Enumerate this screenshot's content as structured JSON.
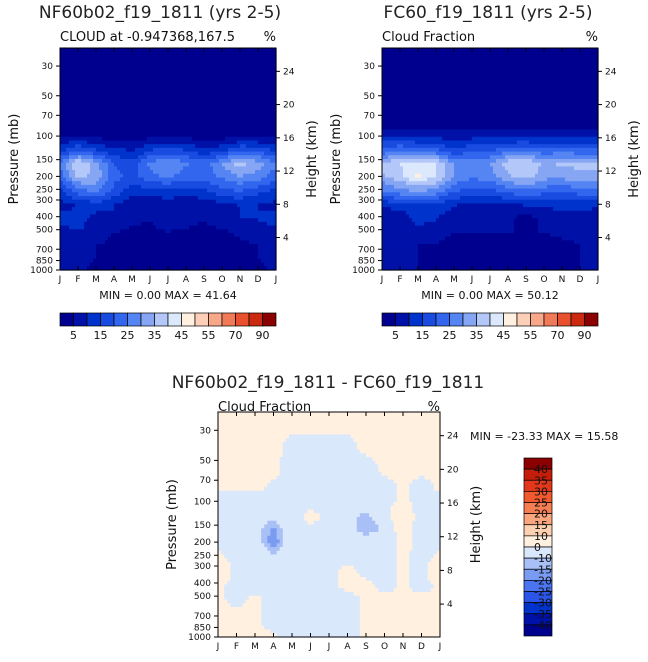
{
  "chart_data": [
    {
      "type": "heatmap",
      "title": "NF60b02_f19_1811 (yrs 2-5)",
      "subtitle": "CLOUD at -0.947368,167.5",
      "units": "%",
      "ylabel": "Pressure (mb)",
      "y2label": "Height (km)",
      "x_ticks": [
        "J",
        "F",
        "M",
        "A",
        "M",
        "J",
        "J",
        "A",
        "S",
        "O",
        "N",
        "D",
        "J"
      ],
      "pressure_ticks": [
        30,
        50,
        70,
        100,
        150,
        200,
        250,
        300,
        400,
        500,
        700,
        850,
        1000
      ],
      "height_ticks": [
        24,
        20,
        16,
        12,
        8,
        4
      ],
      "ylim": [
        1000,
        22
      ],
      "min_label": "MIN =",
      "min_value": "0.00",
      "max_label": "MAX =",
      "max_value": "41.64",
      "colorbar_labels": [
        "5",
        "15",
        "25",
        "35",
        "45",
        "55",
        "70",
        "90"
      ],
      "levels": [
        0,
        5,
        10,
        15,
        20,
        25,
        30,
        35,
        40,
        45,
        50,
        55,
        60,
        70,
        80,
        90
      ],
      "palette": [
        "#00008f",
        "#0011a8",
        "#0033cc",
        "#1a4be0",
        "#3366ee",
        "#5585f2",
        "#86a6f4",
        "#b3c8f8",
        "#dce8fc",
        "#fff0e0",
        "#fcd0b8",
        "#f8a888",
        "#f07a58",
        "#e8502e",
        "#cc2a10",
        "#8b0000"
      ],
      "grid": {
        "rows": [
          25,
          40,
          60,
          80,
          100,
          130,
          160,
          200,
          260,
          330,
          420,
          520,
          650,
          800,
          1000
        ],
        "values": [
          [
            0.5,
            0.5,
            0.5,
            0.5,
            0.5,
            0.5,
            0.5,
            0.5,
            0.5,
            0.5,
            0.5,
            0.5,
            0.5
          ],
          [
            0.5,
            0.5,
            0.5,
            0.5,
            0.5,
            0.5,
            0.5,
            0.5,
            0.5,
            0.5,
            0.5,
            0.5,
            0.5
          ],
          [
            0.8,
            0.8,
            0.8,
            0.8,
            0.8,
            0.8,
            0.8,
            0.8,
            0.8,
            0.8,
            0.8,
            0.8,
            0.8
          ],
          [
            1,
            1,
            1,
            1,
            1,
            1,
            1,
            1,
            1,
            1,
            1,
            1,
            1
          ],
          [
            4,
            4,
            3,
            3,
            3,
            3,
            3,
            3,
            3,
            3,
            3,
            3,
            4
          ],
          [
            14,
            22,
            16,
            12,
            10,
            16,
            18,
            16,
            12,
            14,
            22,
            20,
            14
          ],
          [
            26,
            40,
            32,
            20,
            16,
            26,
            30,
            26,
            22,
            30,
            38,
            32,
            26
          ],
          [
            22,
            36,
            34,
            22,
            18,
            24,
            26,
            22,
            22,
            26,
            30,
            28,
            22
          ],
          [
            13,
            22,
            26,
            18,
            12,
            12,
            14,
            12,
            14,
            18,
            20,
            16,
            13
          ],
          [
            8,
            10,
            12,
            10,
            6,
            6,
            6,
            6,
            6,
            8,
            10,
            10,
            8
          ],
          [
            12,
            12,
            8,
            10,
            6,
            5,
            8,
            7,
            5,
            8,
            10,
            10,
            12
          ],
          [
            8,
            10,
            8,
            5,
            4,
            4,
            5,
            4,
            4,
            4,
            6,
            8,
            8
          ],
          [
            6,
            7,
            5,
            4,
            3,
            3,
            3,
            3,
            3,
            4,
            4,
            5,
            6
          ],
          [
            6,
            7,
            5,
            3,
            4,
            4,
            3,
            3,
            3,
            3,
            3,
            5,
            6
          ],
          [
            6,
            6,
            4,
            3,
            3,
            3,
            3,
            3,
            3,
            3,
            3,
            4,
            6
          ]
        ]
      }
    },
    {
      "type": "heatmap",
      "title": "FC60_f19_1811 (yrs 2-5)",
      "subtitle": "Cloud Fraction",
      "units": "%",
      "ylabel": "Pressure (mb)",
      "y2label": "Height (km)",
      "x_ticks": [
        "J",
        "F",
        "M",
        "A",
        "M",
        "J",
        "J",
        "A",
        "S",
        "O",
        "N",
        "D",
        "J"
      ],
      "pressure_ticks": [
        30,
        50,
        70,
        100,
        150,
        200,
        250,
        300,
        400,
        500,
        700,
        850,
        1000
      ],
      "height_ticks": [
        24,
        20,
        16,
        12,
        8,
        4
      ],
      "ylim": [
        1000,
        22
      ],
      "min_label": "MIN =",
      "min_value": "0.00",
      "max_label": "MAX =",
      "max_value": "50.12",
      "colorbar_labels": [
        "5",
        "15",
        "25",
        "35",
        "45",
        "55",
        "70",
        "90"
      ],
      "levels": [
        0,
        5,
        10,
        15,
        20,
        25,
        30,
        35,
        40,
        45,
        50,
        55,
        60,
        70,
        80,
        90
      ],
      "palette": [
        "#00008f",
        "#0011a8",
        "#0033cc",
        "#1a4be0",
        "#3366ee",
        "#5585f2",
        "#86a6f4",
        "#b3c8f8",
        "#dce8fc",
        "#fff0e0",
        "#fcd0b8",
        "#f8a888",
        "#f07a58",
        "#e8502e",
        "#cc2a10",
        "#8b0000"
      ],
      "grid": {
        "rows": [
          25,
          40,
          60,
          80,
          100,
          130,
          160,
          200,
          260,
          330,
          420,
          520,
          650,
          800,
          1000
        ],
        "values": [
          [
            0.5,
            0.5,
            0.5,
            0.5,
            0.5,
            0.5,
            0.5,
            0.5,
            0.5,
            0.5,
            0.5,
            0.5,
            0.5
          ],
          [
            0.5,
            0.5,
            0.5,
            0.5,
            0.5,
            0.5,
            0.5,
            0.5,
            0.5,
            0.5,
            0.5,
            0.5,
            0.5
          ],
          [
            0.8,
            0.8,
            0.8,
            0.8,
            0.8,
            0.8,
            0.8,
            0.8,
            0.8,
            0.8,
            0.8,
            0.8,
            0.8
          ],
          [
            2,
            2,
            2,
            2,
            2,
            2,
            2,
            2,
            2,
            2,
            2,
            2,
            2
          ],
          [
            10,
            10,
            8,
            8,
            8,
            8,
            8,
            8,
            8,
            8,
            8,
            8,
            10
          ],
          [
            22,
            26,
            24,
            22,
            16,
            20,
            20,
            24,
            26,
            22,
            24,
            22,
            22
          ],
          [
            36,
            40,
            42,
            40,
            30,
            28,
            30,
            38,
            40,
            34,
            36,
            36,
            36
          ],
          [
            34,
            38,
            46,
            40,
            30,
            26,
            28,
            34,
            38,
            32,
            32,
            34,
            34
          ],
          [
            24,
            28,
            30,
            28,
            20,
            18,
            18,
            22,
            24,
            22,
            20,
            22,
            24
          ],
          [
            10,
            12,
            14,
            12,
            10,
            8,
            8,
            8,
            10,
            10,
            12,
            12,
            10
          ],
          [
            8,
            6,
            12,
            10,
            8,
            8,
            6,
            6,
            2,
            6,
            8,
            8,
            8
          ],
          [
            6,
            6,
            8,
            6,
            5,
            5,
            5,
            5,
            5,
            5,
            6,
            6,
            6
          ],
          [
            5,
            5,
            5,
            5,
            4,
            4,
            3,
            4,
            4,
            4,
            4,
            5,
            5
          ],
          [
            5,
            5,
            5,
            4,
            4,
            4,
            4,
            4,
            4,
            4,
            4,
            5,
            5
          ],
          [
            5,
            5,
            5,
            4,
            4,
            4,
            4,
            4,
            4,
            4,
            4,
            5,
            5
          ]
        ]
      }
    },
    {
      "type": "heatmap",
      "title": "NF60b02_f19_1811 - FC60_f19_1811",
      "subtitle": "Cloud Fraction",
      "units": "%",
      "ylabel": "Pressure (mb)",
      "y2label": "Height (km)",
      "x_ticks": [
        "J",
        "F",
        "M",
        "A",
        "M",
        "J",
        "J",
        "A",
        "S",
        "O",
        "N",
        "D",
        "J"
      ],
      "pressure_ticks": [
        30,
        50,
        70,
        100,
        150,
        200,
        250,
        300,
        400,
        500,
        700,
        850,
        1000
      ],
      "height_ticks": [
        24,
        20,
        16,
        12,
        8,
        4
      ],
      "ylim": [
        1000,
        22
      ],
      "min_label": "MIN =",
      "min_value": "-23.33",
      "max_label": "MAX =",
      "max_value": "15.58",
      "colorbar_labels": [
        "40",
        "35",
        "30",
        "25",
        "20",
        "15",
        "10",
        "0",
        "-10",
        "-15",
        "-20",
        "-25",
        "-30",
        "-35",
        "-40"
      ],
      "levels": [
        -1000,
        -40,
        -35,
        -30,
        -25,
        -20,
        -15,
        -10,
        0,
        10,
        15,
        20,
        25,
        30,
        35,
        40
      ],
      "palette": [
        "#00008f",
        "#0011a8",
        "#0033cc",
        "#2b55e8",
        "#4a74f0",
        "#7a9bf2",
        "#a9c0f6",
        "#dae8fc",
        "#fff0e0",
        "#fcd0b0",
        "#f9a67e",
        "#f57e52",
        "#f05a2e",
        "#e2371a",
        "#c41e0a",
        "#8b0000"
      ],
      "grid": {
        "rows": [
          25,
          40,
          60,
          80,
          100,
          130,
          160,
          200,
          260,
          330,
          420,
          520,
          650,
          800,
          1000
        ],
        "values": [
          [
            1,
            1,
            1,
            1,
            1,
            1,
            1,
            1,
            1,
            1,
            1,
            1,
            1
          ],
          [
            1,
            1,
            1,
            1,
            -1,
            -1,
            -1,
            -1,
            1,
            1,
            1,
            1,
            1
          ],
          [
            1,
            1,
            1,
            1,
            -2,
            -2,
            -2,
            -2,
            -2,
            1,
            1,
            1,
            1
          ],
          [
            1,
            1,
            1,
            -1,
            -2,
            -2,
            -2,
            -2,
            -2,
            -2,
            1,
            -2,
            1
          ],
          [
            -2,
            -2,
            -2,
            -2,
            -2,
            -2,
            -2,
            -2,
            -2,
            -2,
            1,
            -2,
            -2
          ],
          [
            -4,
            -3,
            -4,
            -8,
            -3,
            2,
            -2,
            -8,
            -12,
            -6,
            12,
            -8,
            -4
          ],
          [
            -2,
            -2,
            -6,
            -16,
            -2,
            -1,
            -2,
            -6,
            -14,
            -8,
            6,
            -6,
            -2
          ],
          [
            -1,
            -2,
            -4,
            -20,
            -2,
            -2,
            -1,
            -3,
            -6,
            -4,
            2,
            -2,
            -1
          ],
          [
            1,
            -2,
            -2,
            -8,
            -2,
            -2,
            -2,
            -2,
            -2,
            -2,
            1,
            -2,
            1
          ],
          [
            6,
            -2,
            -2,
            -2,
            -2,
            -2,
            -2,
            2,
            -2,
            -2,
            1,
            -2,
            6
          ],
          [
            1,
            -2,
            -2,
            -2,
            -2,
            -2,
            -2,
            2,
            2,
            -2,
            1,
            -2,
            1
          ],
          [
            1,
            -2,
            1,
            -2,
            -2,
            -2,
            -2,
            -2,
            1,
            1,
            1,
            1,
            1
          ],
          [
            1,
            1,
            1,
            -2,
            -2,
            -2,
            -2,
            -2,
            1,
            1,
            1,
            1,
            1
          ],
          [
            1,
            1,
            1,
            -2,
            -2,
            -2,
            -2,
            -2,
            1,
            1,
            1,
            1,
            1
          ],
          [
            1,
            1,
            1,
            1,
            -2,
            -2,
            -2,
            -2,
            1,
            1,
            1,
            1,
            1
          ]
        ]
      }
    }
  ]
}
